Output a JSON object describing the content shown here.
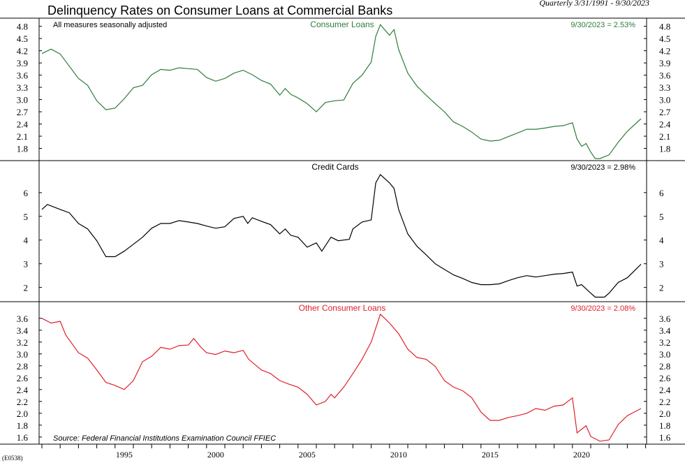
{
  "title": "Delinquency Rates on Consumer Loans at Commercial Banks",
  "subtitle": "Quarterly 3/31/1991 - 9/30/2023",
  "note": "All measures seasonally adjusted",
  "source": "Source: Federal Financial Institutions Examination Council FFIEC",
  "code": "(E0538)",
  "chart_data": [
    {
      "type": "line",
      "title": "Consumer Loans",
      "last_label": "9/30/2023 = 2.53%",
      "color": "#2e7d3a",
      "yticks": [
        1.8,
        2.1,
        2.4,
        2.7,
        3.0,
        3.3,
        3.6,
        3.9,
        4.2,
        4.5,
        4.8
      ],
      "ylim": [
        1.5,
        5.0
      ],
      "x": [
        1991,
        1991.5,
        1992,
        1993,
        1993.5,
        1994,
        1994.5,
        1995,
        1995.5,
        1996,
        1996.5,
        1997,
        1997.5,
        1998,
        1998.5,
        1999,
        1999.5,
        2000,
        2000.5,
        2001,
        2001.5,
        2002,
        2002.5,
        2003,
        2003.5,
        2004,
        2004.3,
        2004.6,
        2005,
        2005.5,
        2006,
        2006.5,
        2007,
        2007.5,
        2008,
        2008.5,
        2009,
        2009.25,
        2009.5,
        2010,
        2010.25,
        2010.5,
        2011,
        2011.5,
        2012,
        2012.5,
        2013,
        2013.5,
        2014,
        2014.5,
        2015,
        2015.5,
        2016,
        2016.5,
        2017,
        2017.5,
        2018,
        2018.5,
        2019,
        2019.5,
        2020,
        2020.25,
        2020.5,
        2020.75,
        2021,
        2021.25,
        2021.5,
        2022,
        2022.5,
        2023,
        2023.75
      ],
      "y": [
        4.13,
        4.24,
        4.12,
        3.52,
        3.35,
        2.97,
        2.75,
        2.79,
        3.02,
        3.29,
        3.35,
        3.61,
        3.74,
        3.72,
        3.78,
        3.76,
        3.74,
        3.54,
        3.45,
        3.52,
        3.65,
        3.72,
        3.61,
        3.47,
        3.38,
        3.11,
        3.27,
        3.13,
        3.04,
        2.9,
        2.7,
        2.93,
        2.97,
        2.99,
        3.4,
        3.6,
        3.92,
        4.55,
        4.84,
        4.58,
        4.72,
        4.23,
        3.65,
        3.33,
        3.11,
        2.9,
        2.7,
        2.45,
        2.34,
        2.2,
        2.03,
        1.98,
        2.0,
        2.09,
        2.18,
        2.27,
        2.27,
        2.3,
        2.34,
        2.36,
        2.43,
        2.03,
        1.85,
        1.92,
        1.71,
        1.55,
        1.55,
        1.64,
        1.95,
        2.22,
        2.53
      ]
    },
    {
      "type": "line",
      "title": "Credit Cards",
      "last_label": "9/30/2023 = 2.98%",
      "color": "#000000",
      "yticks": [
        2,
        3,
        4,
        5,
        6
      ],
      "ylim": [
        1.4,
        7.35
      ],
      "x": [
        1991,
        1991.3,
        1992,
        1992.5,
        1993,
        1993.5,
        1994,
        1994.5,
        1995,
        1995.5,
        1996,
        1996.5,
        1997,
        1997.5,
        1998,
        1998.5,
        1999,
        1999.5,
        2000,
        2000.5,
        2001,
        2001.5,
        2002,
        2002.25,
        2002.5,
        2003,
        2003.5,
        2004,
        2004.3,
        2004.6,
        2005,
        2005.5,
        2006,
        2006.3,
        2006.8,
        2007.2,
        2007.8,
        2008,
        2008.5,
        2009,
        2009.25,
        2009.5,
        2010,
        2010.25,
        2010.5,
        2011,
        2011.5,
        2012,
        2012.5,
        2013,
        2013.5,
        2014,
        2014.5,
        2015,
        2015.5,
        2016,
        2016.5,
        2017,
        2017.5,
        2018,
        2018.5,
        2019,
        2019.5,
        2020,
        2020.25,
        2020.5,
        2021,
        2021.25,
        2021.75,
        2022,
        2022.5,
        2023,
        2023.75
      ],
      "y": [
        5.29,
        5.5,
        5.29,
        5.15,
        4.7,
        4.47,
        3.97,
        3.3,
        3.3,
        3.53,
        3.82,
        4.12,
        4.5,
        4.7,
        4.7,
        4.82,
        4.76,
        4.7,
        4.59,
        4.5,
        4.56,
        4.91,
        5.0,
        4.7,
        4.94,
        4.79,
        4.65,
        4.26,
        4.47,
        4.2,
        4.12,
        3.7,
        3.88,
        3.53,
        4.12,
        3.97,
        4.03,
        4.47,
        4.76,
        4.85,
        6.41,
        6.76,
        6.41,
        6.18,
        5.29,
        4.26,
        3.74,
        3.38,
        3.0,
        2.76,
        2.53,
        2.38,
        2.21,
        2.12,
        2.12,
        2.15,
        2.29,
        2.41,
        2.5,
        2.44,
        2.5,
        2.56,
        2.59,
        2.65,
        2.06,
        2.12,
        1.76,
        1.59,
        1.59,
        1.76,
        2.21,
        2.41,
        2.98
      ]
    },
    {
      "type": "line",
      "title": "Other Consumer Loans",
      "last_label": "9/30/2023 = 2.08%",
      "color": "#e0202a",
      "yticks": [
        1.6,
        1.8,
        2.0,
        2.2,
        2.4,
        2.6,
        2.8,
        3.0,
        3.2,
        3.4,
        3.6
      ],
      "ylim": [
        1.48,
        3.88
      ],
      "x": [
        1991,
        1991.5,
        1992,
        1992.3,
        1993,
        1993.5,
        1994,
        1994.5,
        1995,
        1995.5,
        1996,
        1996.5,
        1997,
        1997.5,
        1998,
        1998.5,
        1999,
        1999.3,
        1999.7,
        2000,
        2000.5,
        2001,
        2001.5,
        2002,
        2002.3,
        2003,
        2003.5,
        2004,
        2004.5,
        2005,
        2005.5,
        2006,
        2006.5,
        2006.8,
        2007,
        2007.5,
        2008,
        2008.5,
        2009,
        2009.5,
        2010,
        2010.5,
        2011,
        2011.5,
        2012,
        2012.5,
        2013,
        2013.5,
        2014,
        2014.5,
        2015,
        2015.5,
        2016,
        2016.5,
        2017,
        2017.5,
        2018,
        2018.5,
        2019,
        2019.5,
        2020,
        2020.25,
        2020.75,
        2021,
        2021.5,
        2022,
        2022.5,
        2023,
        2023.75
      ],
      "y": [
        3.6,
        3.52,
        3.55,
        3.32,
        3.02,
        2.93,
        2.73,
        2.52,
        2.47,
        2.4,
        2.55,
        2.87,
        2.96,
        3.11,
        3.08,
        3.14,
        3.15,
        3.26,
        3.11,
        3.02,
        2.99,
        3.05,
        3.02,
        3.06,
        2.91,
        2.73,
        2.67,
        2.55,
        2.49,
        2.44,
        2.32,
        2.14,
        2.2,
        2.32,
        2.26,
        2.44,
        2.67,
        2.91,
        3.2,
        3.67,
        3.52,
        3.34,
        3.08,
        2.94,
        2.91,
        2.79,
        2.55,
        2.44,
        2.38,
        2.26,
        2.02,
        1.88,
        1.88,
        1.93,
        1.96,
        2.0,
        2.08,
        2.05,
        2.12,
        2.14,
        2.26,
        1.67,
        1.79,
        1.61,
        1.53,
        1.55,
        1.81,
        1.96,
        2.08
      ]
    }
  ],
  "xticks": [
    1995,
    2000,
    2005,
    2010,
    2015,
    2020
  ],
  "xlim": [
    1991,
    2024.5
  ]
}
